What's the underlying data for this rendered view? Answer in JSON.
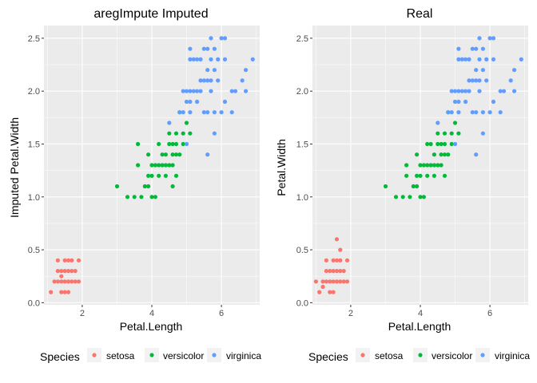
{
  "legend": {
    "title": "Species",
    "entries": [
      {
        "label": "setosa",
        "color": "#F8766D"
      },
      {
        "label": "versicolor",
        "color": "#00BA38"
      },
      {
        "label": "virginica",
        "color": "#619CFF"
      }
    ]
  },
  "theme": {
    "panel_background": "#EBEBEB",
    "grid_major": "#FFFFFF",
    "tick_text": "#4D4D4D"
  },
  "chart_data": [
    {
      "type": "scatter",
      "title": "aregImpute Imputed",
      "xlabel": "Petal.Length",
      "ylabel": "Imputed Petal.Width",
      "xlim": [
        0.9,
        7.1
      ],
      "ylim": [
        -0.02,
        2.62
      ],
      "xticks": [
        2,
        4,
        6
      ],
      "yticks": [
        "0.0",
        "0.5",
        "1.0",
        "1.5",
        "2.0",
        "2.5"
      ],
      "grid": true,
      "legend_position": "bottom",
      "series": [
        {
          "name": "setosa",
          "color": "#F8766D",
          "points": [
            [
              1.1,
              0.1
            ],
            [
              1.2,
              0.2
            ],
            [
              1.3,
              0.2
            ],
            [
              1.3,
              0.3
            ],
            [
              1.3,
              0.4
            ],
            [
              1.4,
              0.1
            ],
            [
              1.4,
              0.2
            ],
            [
              1.4,
              0.3
            ],
            [
              1.5,
              0.1
            ],
            [
              1.5,
              0.2
            ],
            [
              1.5,
              0.3
            ],
            [
              1.5,
              0.4
            ],
            [
              1.6,
              0.2
            ],
            [
              1.6,
              0.3
            ],
            [
              1.6,
              0.4
            ],
            [
              1.7,
              0.2
            ],
            [
              1.7,
              0.3
            ],
            [
              1.7,
              0.4
            ],
            [
              1.8,
              0.2
            ],
            [
              1.8,
              0.3
            ],
            [
              1.9,
              0.2
            ],
            [
              1.9,
              0.4
            ],
            [
              1.4,
              0.25
            ],
            [
              1.6,
              0.1
            ]
          ]
        },
        {
          "name": "versicolor",
          "color": "#00BA38",
          "points": [
            [
              3.0,
              1.1
            ],
            [
              3.3,
              1.0
            ],
            [
              3.5,
              1.0
            ],
            [
              3.6,
              1.3
            ],
            [
              3.6,
              1.5
            ],
            [
              3.7,
              1.0
            ],
            [
              3.8,
              1.1
            ],
            [
              3.9,
              1.1
            ],
            [
              3.9,
              1.2
            ],
            [
              3.9,
              1.4
            ],
            [
              4.0,
              1.0
            ],
            [
              4.0,
              1.2
            ],
            [
              4.0,
              1.3
            ],
            [
              4.1,
              1.0
            ],
            [
              4.1,
              1.3
            ],
            [
              4.2,
              1.2
            ],
            [
              4.2,
              1.3
            ],
            [
              4.2,
              1.5
            ],
            [
              4.3,
              1.3
            ],
            [
              4.4,
              1.2
            ],
            [
              4.4,
              1.3
            ],
            [
              4.4,
              1.4
            ],
            [
              4.5,
              1.3
            ],
            [
              4.5,
              1.5
            ],
            [
              4.6,
              1.3
            ],
            [
              4.6,
              1.4
            ],
            [
              4.6,
              1.5
            ],
            [
              4.7,
              1.2
            ],
            [
              4.7,
              1.4
            ],
            [
              4.7,
              1.5
            ],
            [
              4.8,
              1.4
            ],
            [
              4.8,
              1.8
            ],
            [
              4.9,
              1.5
            ],
            [
              5.0,
              1.7
            ],
            [
              5.1,
              1.6
            ],
            [
              4.5,
              1.6
            ],
            [
              4.7,
              1.6
            ],
            [
              4.9,
              1.6
            ],
            [
              4.6,
              1.1
            ],
            [
              4.3,
              1.4
            ]
          ]
        },
        {
          "name": "virginica",
          "color": "#619CFF",
          "points": [
            [
              4.5,
              1.7
            ],
            [
              4.8,
              1.8
            ],
            [
              4.9,
              1.8
            ],
            [
              4.9,
              2.0
            ],
            [
              5.0,
              1.5
            ],
            [
              5.0,
              1.9
            ],
            [
              5.0,
              2.0
            ],
            [
              5.1,
              1.9
            ],
            [
              5.1,
              2.0
            ],
            [
              5.1,
              2.3
            ],
            [
              5.1,
              2.4
            ],
            [
              5.1,
              1.8
            ],
            [
              5.2,
              2.0
            ],
            [
              5.2,
              2.3
            ],
            [
              5.3,
              1.9
            ],
            [
              5.3,
              2.3
            ],
            [
              5.4,
              2.1
            ],
            [
              5.4,
              2.3
            ],
            [
              5.5,
              1.8
            ],
            [
              5.5,
              2.1
            ],
            [
              5.5,
              2.4
            ],
            [
              5.6,
              1.8
            ],
            [
              5.6,
              2.1
            ],
            [
              5.6,
              2.2
            ],
            [
              5.6,
              2.4
            ],
            [
              5.6,
              1.4
            ],
            [
              5.7,
              2.1
            ],
            [
              5.7,
              2.3
            ],
            [
              5.7,
              2.5
            ],
            [
              5.8,
              1.6
            ],
            [
              5.8,
              1.8
            ],
            [
              5.8,
              2.2
            ],
            [
              5.8,
              2.4
            ],
            [
              5.9,
              2.1
            ],
            [
              5.9,
              2.3
            ],
            [
              6.0,
              1.8
            ],
            [
              6.0,
              2.5
            ],
            [
              6.1,
              1.9
            ],
            [
              6.1,
              2.3
            ],
            [
              6.1,
              2.5
            ],
            [
              6.3,
              1.8
            ],
            [
              6.4,
              2.0
            ],
            [
              6.6,
              2.1
            ],
            [
              6.7,
              2.0
            ],
            [
              6.7,
              2.2
            ],
            [
              6.9,
              2.3
            ],
            [
              5.4,
              2.0
            ],
            [
              5.3,
              2.0
            ],
            [
              5.7,
              2.0
            ],
            [
              6.3,
              2.0
            ]
          ]
        }
      ]
    },
    {
      "type": "scatter",
      "title": "Real",
      "xlabel": "Petal.Length",
      "ylabel": "Petal.Width",
      "xlim": [
        0.9,
        7.1
      ],
      "ylim": [
        -0.02,
        2.62
      ],
      "xticks": [
        2,
        4,
        6
      ],
      "yticks": [
        "0.0",
        "0.5",
        "1.0",
        "1.5",
        "2.0",
        "2.5"
      ],
      "grid": true,
      "legend_position": "bottom",
      "series": [
        {
          "name": "setosa",
          "color": "#F8766D",
          "points": [
            [
              1.0,
              0.2
            ],
            [
              1.1,
              0.1
            ],
            [
              1.2,
              0.2
            ],
            [
              1.3,
              0.2
            ],
            [
              1.3,
              0.3
            ],
            [
              1.3,
              0.4
            ],
            [
              1.4,
              0.1
            ],
            [
              1.4,
              0.2
            ],
            [
              1.4,
              0.3
            ],
            [
              1.5,
              0.1
            ],
            [
              1.5,
              0.2
            ],
            [
              1.5,
              0.3
            ],
            [
              1.5,
              0.4
            ],
            [
              1.6,
              0.2
            ],
            [
              1.6,
              0.4
            ],
            [
              1.6,
              0.6
            ],
            [
              1.7,
              0.2
            ],
            [
              1.7,
              0.3
            ],
            [
              1.7,
              0.4
            ],
            [
              1.7,
              0.5
            ],
            [
              1.8,
              0.2
            ],
            [
              1.8,
              0.3
            ],
            [
              1.9,
              0.2
            ],
            [
              1.9,
              0.4
            ],
            [
              1.6,
              0.3
            ],
            [
              1.2,
              0.15
            ]
          ]
        },
        {
          "name": "versicolor",
          "color": "#00BA38",
          "points": [
            [
              3.0,
              1.1
            ],
            [
              3.3,
              1.0
            ],
            [
              3.5,
              1.0
            ],
            [
              3.6,
              1.3
            ],
            [
              3.7,
              1.0
            ],
            [
              3.8,
              1.1
            ],
            [
              3.9,
              1.1
            ],
            [
              3.9,
              1.2
            ],
            [
              3.9,
              1.4
            ],
            [
              4.0,
              1.0
            ],
            [
              4.0,
              1.2
            ],
            [
              4.0,
              1.3
            ],
            [
              4.1,
              1.0
            ],
            [
              4.1,
              1.3
            ],
            [
              4.2,
              1.2
            ],
            [
              4.2,
              1.3
            ],
            [
              4.2,
              1.5
            ],
            [
              4.3,
              1.3
            ],
            [
              4.4,
              1.2
            ],
            [
              4.4,
              1.3
            ],
            [
              4.4,
              1.4
            ],
            [
              4.5,
              1.3
            ],
            [
              4.5,
              1.5
            ],
            [
              4.6,
              1.3
            ],
            [
              4.6,
              1.4
            ],
            [
              4.6,
              1.5
            ],
            [
              4.7,
              1.2
            ],
            [
              4.7,
              1.4
            ],
            [
              4.7,
              1.5
            ],
            [
              4.8,
              1.4
            ],
            [
              4.8,
              1.8
            ],
            [
              4.9,
              1.5
            ],
            [
              5.0,
              1.7
            ],
            [
              5.1,
              1.6
            ],
            [
              4.5,
              1.6
            ],
            [
              4.7,
              1.6
            ],
            [
              4.9,
              1.6
            ],
            [
              3.6,
              1.2
            ],
            [
              4.3,
              1.5
            ]
          ]
        },
        {
          "name": "virginica",
          "color": "#619CFF",
          "points": [
            [
              4.5,
              1.7
            ],
            [
              4.8,
              1.8
            ],
            [
              4.9,
              1.8
            ],
            [
              4.9,
              2.0
            ],
            [
              5.0,
              1.5
            ],
            [
              5.0,
              1.9
            ],
            [
              5.0,
              2.0
            ],
            [
              5.1,
              1.9
            ],
            [
              5.1,
              2.0
            ],
            [
              5.1,
              2.3
            ],
            [
              5.1,
              2.4
            ],
            [
              5.1,
              1.8
            ],
            [
              5.2,
              2.0
            ],
            [
              5.2,
              2.3
            ],
            [
              5.3,
              1.9
            ],
            [
              5.3,
              2.3
            ],
            [
              5.4,
              2.1
            ],
            [
              5.4,
              2.3
            ],
            [
              5.5,
              1.8
            ],
            [
              5.5,
              2.1
            ],
            [
              5.5,
              2.4
            ],
            [
              5.6,
              1.8
            ],
            [
              5.6,
              2.1
            ],
            [
              5.6,
              2.2
            ],
            [
              5.6,
              2.4
            ],
            [
              5.6,
              1.4
            ],
            [
              5.7,
              2.1
            ],
            [
              5.7,
              2.3
            ],
            [
              5.7,
              2.5
            ],
            [
              5.8,
              1.6
            ],
            [
              5.8,
              1.8
            ],
            [
              5.8,
              2.2
            ],
            [
              5.8,
              2.4
            ],
            [
              5.9,
              2.1
            ],
            [
              5.9,
              2.3
            ],
            [
              6.0,
              1.8
            ],
            [
              6.0,
              2.5
            ],
            [
              6.1,
              1.9
            ],
            [
              6.1,
              2.3
            ],
            [
              6.1,
              2.5
            ],
            [
              6.3,
              1.8
            ],
            [
              6.4,
              2.0
            ],
            [
              6.6,
              2.1
            ],
            [
              6.7,
              2.0
            ],
            [
              6.7,
              2.2
            ],
            [
              6.9,
              2.3
            ],
            [
              5.4,
              2.0
            ],
            [
              5.3,
              2.0
            ],
            [
              5.7,
              2.0
            ],
            [
              6.3,
              2.0
            ]
          ]
        }
      ]
    }
  ]
}
